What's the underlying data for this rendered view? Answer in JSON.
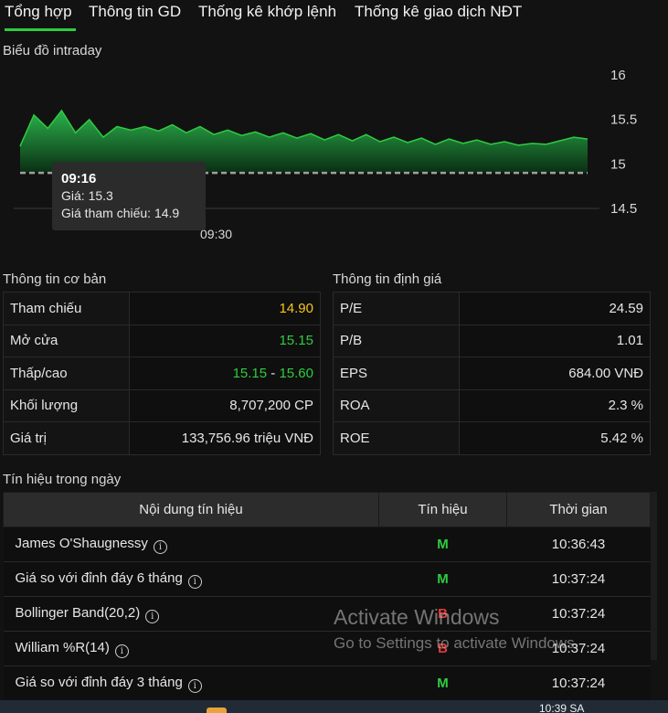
{
  "tabs": [
    {
      "label": "Tổng hợp",
      "active": true
    },
    {
      "label": "Thông tin GD",
      "active": false
    },
    {
      "label": "Thống kê khớp lệnh",
      "active": false
    },
    {
      "label": "Thống kê giao dịch NĐT",
      "active": false
    }
  ],
  "chart_section": {
    "title": "Biểu đồ intraday"
  },
  "chart_data": {
    "type": "area",
    "y_axis_ticks": [
      "16",
      "15.5",
      "15",
      "14.5"
    ],
    "ylim": [
      14.5,
      16
    ],
    "x_axis_ticks": [
      "09:30"
    ],
    "reference_line": 14.9,
    "series": [
      {
        "values": [
          15.2,
          15.55,
          15.4,
          15.6,
          15.35,
          15.5,
          15.3,
          15.42,
          15.38,
          15.42,
          15.37,
          15.44,
          15.35,
          15.42,
          15.33,
          15.38,
          15.32,
          15.36,
          15.3,
          15.35,
          15.29,
          15.34,
          15.27,
          15.33,
          15.26,
          15.33,
          15.25,
          15.3,
          15.24,
          15.29,
          15.22,
          15.28,
          15.23,
          15.27,
          15.22,
          15.25,
          15.21,
          15.23,
          15.22,
          15.26,
          15.3,
          15.28
        ]
      }
    ],
    "tooltip": {
      "time": "09:16",
      "price_label": "Giá: 15.3",
      "ref_label": "Giá tham chiếu: 14.9"
    },
    "colors": {
      "line": "#2ecc40",
      "fill_top": "#27a844",
      "fill_bottom": "#0d3b18",
      "reference": "#9a9a9a"
    }
  },
  "basic_info": {
    "title": "Thông tin cơ bản",
    "rows": [
      {
        "label": "Tham chiếu",
        "value": "14.90",
        "color": "yellow"
      },
      {
        "label": "Mở cửa",
        "value": "15.15",
        "color": "green"
      },
      {
        "label": "Thấp/cao",
        "low": "15.15",
        "sep": " - ",
        "high": "15.60"
      },
      {
        "label": "Khối lượng",
        "value": "8,707,200 CP"
      },
      {
        "label": "Giá trị",
        "value": "133,756.96 triệu VNĐ"
      }
    ]
  },
  "valuation": {
    "title": "Thông tin định giá",
    "rows": [
      {
        "label": "P/E",
        "value": "24.59"
      },
      {
        "label": "P/B",
        "value": "1.01"
      },
      {
        "label": "EPS",
        "value": "684.00 VNĐ"
      },
      {
        "label": "ROA",
        "value": "2.3 %"
      },
      {
        "label": "ROE",
        "value": "5.42 %"
      }
    ]
  },
  "signals": {
    "title": "Tín hiệu trong ngày",
    "headers": [
      "Nội dung tín hiệu",
      "Tín hiệu",
      "Thời gian"
    ],
    "rows": [
      {
        "name": "James O'Shaugnessy",
        "signal": "M",
        "color": "green",
        "time": "10:36:43"
      },
      {
        "name": "Giá so với đỉnh đáy 6 tháng",
        "signal": "M",
        "color": "green",
        "time": "10:37:24"
      },
      {
        "name": "Bollinger Band(20,2)",
        "signal": "B",
        "color": "red",
        "time": "10:37:24"
      },
      {
        "name": "William %R(14)",
        "signal": "B",
        "color": "red",
        "time": "10:37:24"
      },
      {
        "name": "Giá so với đỉnh đáy 3 tháng",
        "signal": "M",
        "color": "green",
        "time": "10:37:24"
      }
    ],
    "info_glyph": "i"
  },
  "watermark": {
    "line1": "Activate Windows",
    "line2": "Go to Settings to activate Windows."
  },
  "taskbar": {
    "time": "10:39 SA"
  }
}
